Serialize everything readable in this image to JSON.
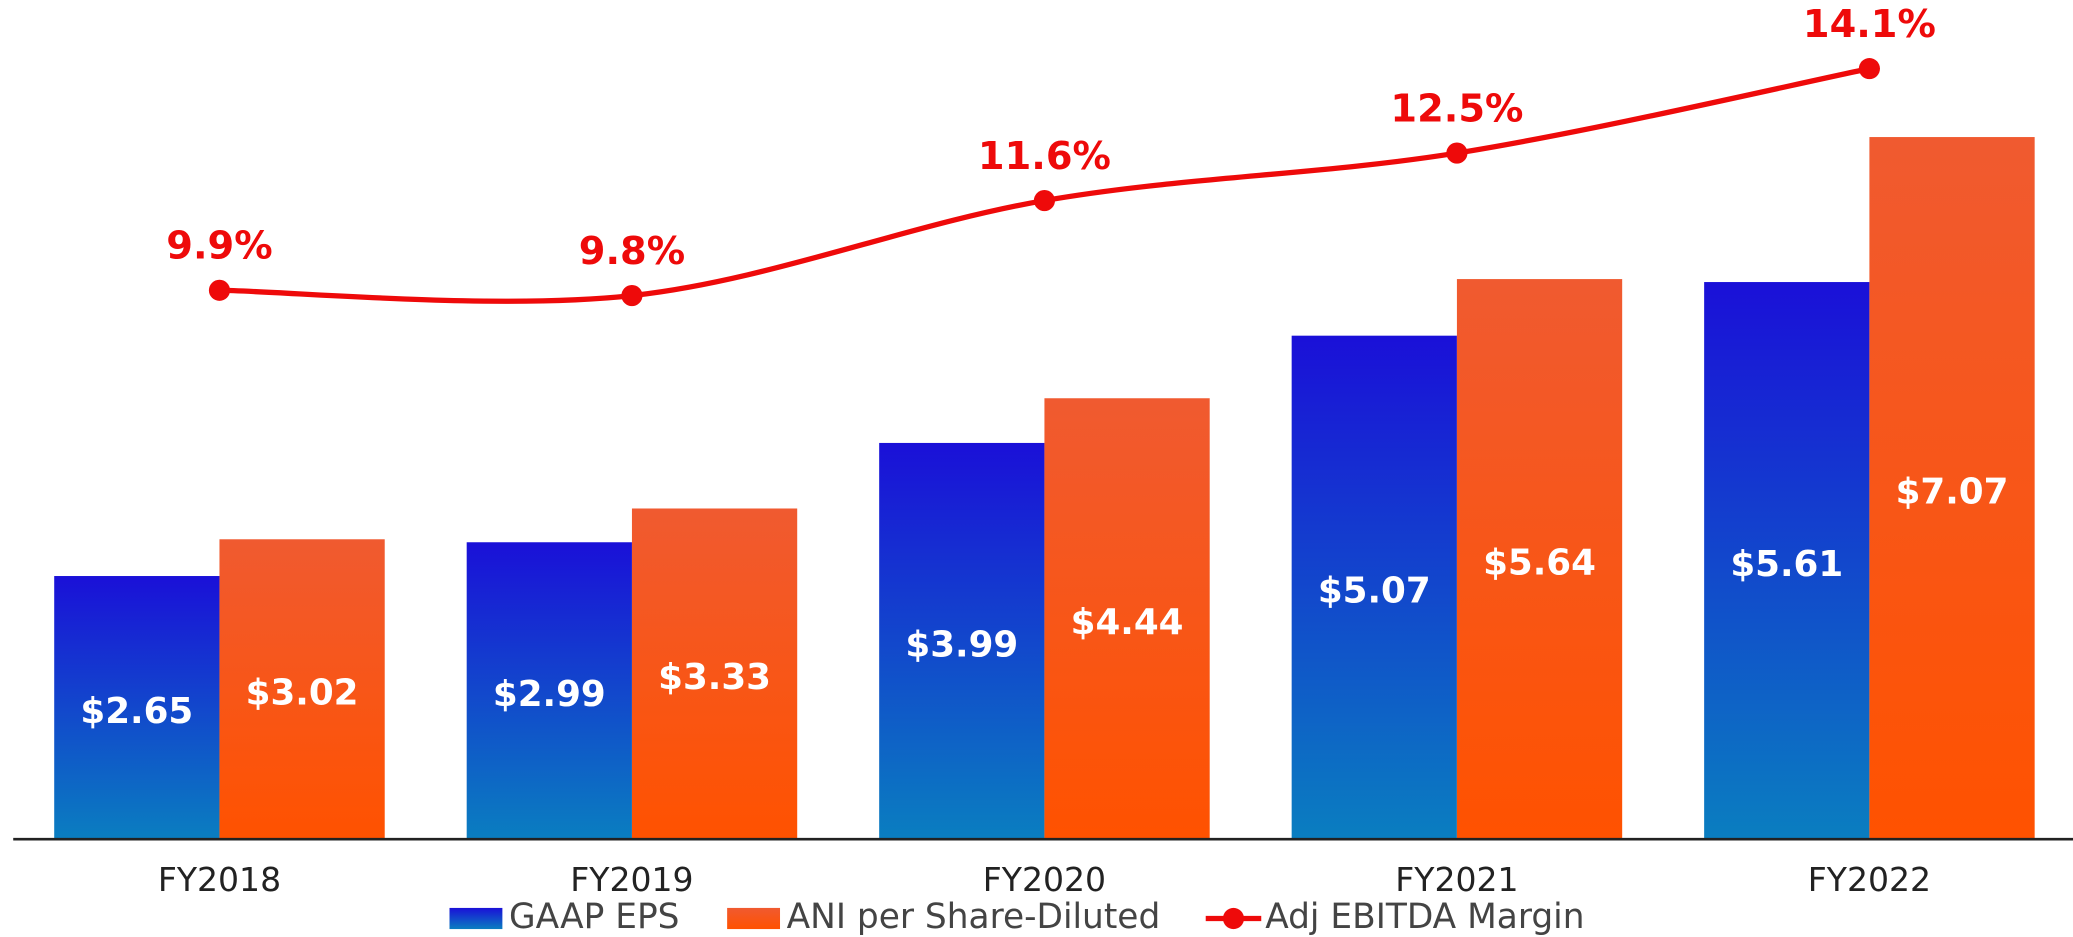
{
  "chart_data": {
    "type": "bar",
    "categories": [
      "FY2018",
      "FY2019",
      "FY2020",
      "FY2021",
      "FY2022"
    ],
    "series": [
      {
        "name": "GAAP EPS",
        "color": "#1a10d8",
        "values": [
          2.65,
          2.99,
          3.99,
          5.07,
          5.61
        ],
        "value_labels": [
          "$2.65",
          "$2.99",
          "$3.99",
          "$5.07",
          "$5.61"
        ]
      },
      {
        "name": "ANI per Share-Diluted",
        "color": "#f05a30",
        "values": [
          3.02,
          3.33,
          4.44,
          5.64,
          7.07
        ],
        "value_labels": [
          "$3.02",
          "$3.33",
          "$4.44",
          "$5.64",
          "$7.07"
        ]
      },
      {
        "name": "Adj EBITDA Margin",
        "type": "line",
        "axis": "y2",
        "color": "#ee0a0a",
        "values": [
          9.9,
          9.8,
          11.6,
          12.5,
          14.1
        ],
        "value_labels": [
          "9.9%",
          "9.8%",
          "11.6%",
          "12.5%",
          "14.1%"
        ]
      }
    ],
    "ylim": [
      0,
      8.45
    ],
    "y2lim": [
      -0.5,
      15.4
    ]
  }
}
